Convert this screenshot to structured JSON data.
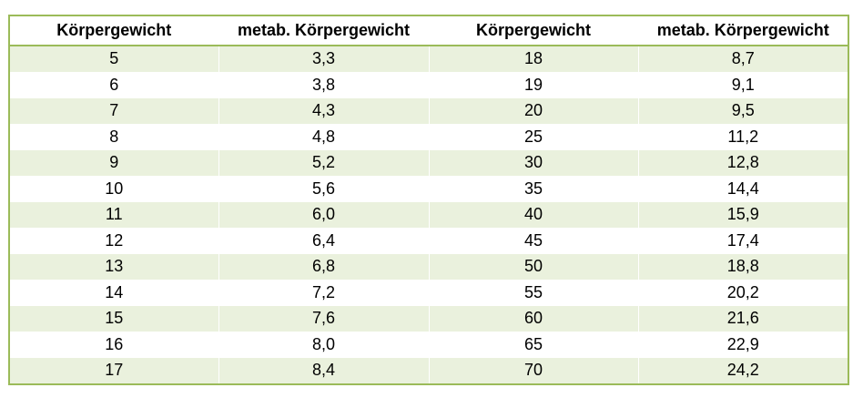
{
  "table": {
    "headers": [
      "Körpergewicht",
      "metab. Körpergewicht",
      "Körpergewicht",
      "metab. Körpergewicht"
    ],
    "rows": [
      [
        "5",
        "3,3",
        "18",
        "8,7"
      ],
      [
        "6",
        "3,8",
        "19",
        "9,1"
      ],
      [
        "7",
        "4,3",
        "20",
        "9,5"
      ],
      [
        "8",
        "4,8",
        "25",
        "11,2"
      ],
      [
        "9",
        "5,2",
        "30",
        "12,8"
      ],
      [
        "10",
        "5,6",
        "35",
        "14,4"
      ],
      [
        "11",
        "6,0",
        "40",
        "15,9"
      ],
      [
        "12",
        "6,4",
        "45",
        "17,4"
      ],
      [
        "13",
        "6,8",
        "50",
        "18,8"
      ],
      [
        "14",
        "7,2",
        "55",
        "20,2"
      ],
      [
        "15",
        "7,6",
        "60",
        "21,6"
      ],
      [
        "16",
        "8,0",
        "65",
        "22,9"
      ],
      [
        "17",
        "8,4",
        "70",
        "24,2"
      ]
    ]
  },
  "colors": {
    "border": "#9bbb59",
    "stripe": "#eaf1dd"
  }
}
